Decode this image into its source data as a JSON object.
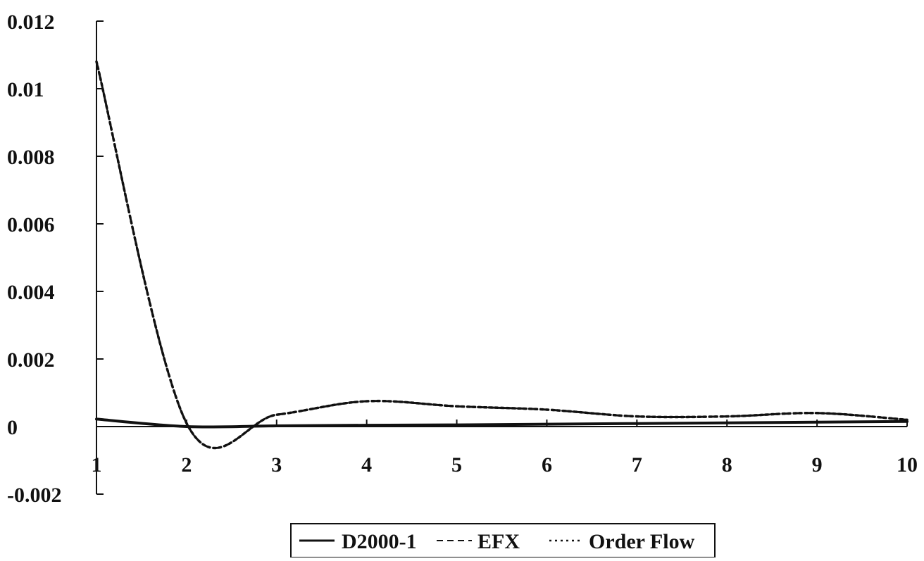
{
  "chart_data": {
    "type": "line",
    "title": "",
    "xlabel": "",
    "ylabel": "",
    "x": [
      1,
      2,
      3,
      4,
      5,
      6,
      7,
      8,
      9,
      10
    ],
    "xlim": [
      1,
      10
    ],
    "ylim": [
      -0.002,
      0.012
    ],
    "y_ticks": [
      "0.012",
      "0.01",
      "0.008",
      "0.006",
      "0.004",
      "0.002",
      "0",
      "-0.002"
    ],
    "y_tick_values": [
      0.012,
      0.01,
      0.008,
      0.006,
      0.004,
      0.002,
      0,
      -0.002
    ],
    "x_ticks": [
      "1",
      "2",
      "3",
      "4",
      "5",
      "6",
      "7",
      "8",
      "9",
      "10"
    ],
    "grid": false,
    "legend_position": "bottom-center",
    "series": [
      {
        "name": "D2000-1",
        "style": "solid",
        "color": "#111111",
        "values": [
          0.00022,
          0.0,
          2e-05,
          4e-05,
          5e-05,
          7e-05,
          9e-05,
          0.00011,
          0.00013,
          0.00015
        ]
      },
      {
        "name": "EFX",
        "style": "dashed",
        "color": "#111111",
        "values": [
          0.0108,
          0.0001,
          0.00035,
          0.00075,
          0.0006,
          0.0005,
          0.0003,
          0.0003,
          0.0004,
          0.0002
        ]
      },
      {
        "name": "Order Flow",
        "style": "dotted",
        "color": "#111111",
        "values": [
          0.0108,
          0.0001,
          0.00035,
          0.00075,
          0.0006,
          0.0005,
          0.0003,
          0.0003,
          0.0004,
          0.0002
        ]
      }
    ]
  }
}
